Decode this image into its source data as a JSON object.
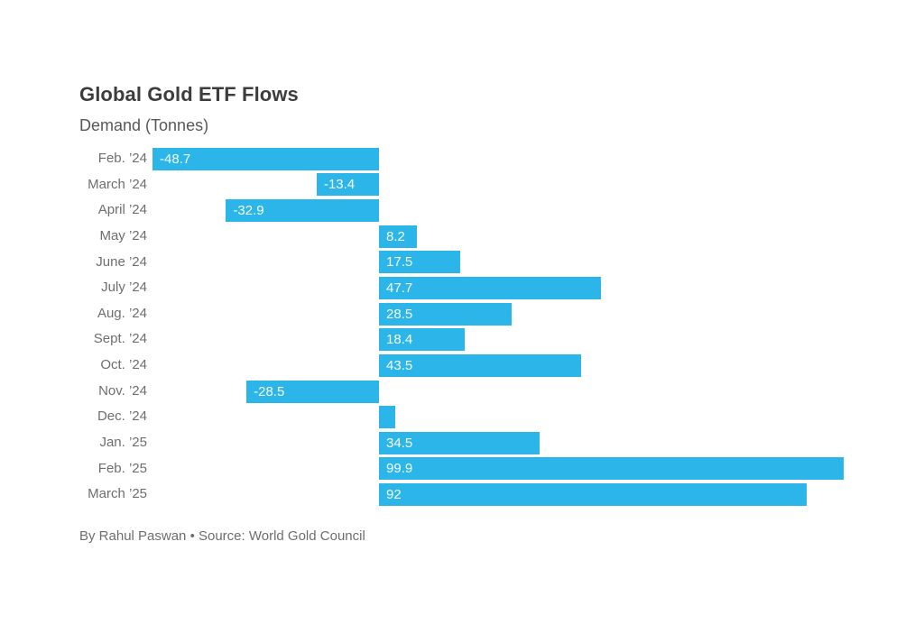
{
  "header": {
    "title": "Global Gold ETF Flows",
    "subtitle": "Demand (Tonnes)"
  },
  "footer": {
    "credit": "By Rahul Paswan • Source: World Gold Council"
  },
  "chart_data": {
    "type": "bar",
    "orientation": "horizontal",
    "title": "Global Gold ETF Flows",
    "subtitle": "Demand (Tonnes)",
    "unit": "Tonnes",
    "categories": [
      "Feb. ’24",
      "March ’24",
      "April ’24",
      "May ’24",
      "June ’24",
      "July ’24",
      "Aug. ’24",
      "Sept. ’24",
      "Oct. ’24",
      "Nov. ’24",
      "Dec. ’24",
      "Jan. ’25",
      "Feb. ’25",
      "March ’25"
    ],
    "values": [
      -48.7,
      -13.4,
      -32.9,
      8.2,
      17.5,
      47.7,
      28.5,
      18.4,
      43.5,
      -28.5,
      3.5,
      34.5,
      99.9,
      92
    ],
    "value_labels": [
      "-48.7",
      "-13.4",
      "-32.9",
      "8.2",
      "17.5",
      "47.7",
      "28.5",
      "18.4",
      "43.5",
      "-28.5",
      "",
      "34.5",
      "99.9",
      "92"
    ],
    "xlim": [
      -48.7,
      99.9
    ],
    "grid": false,
    "legend": "none",
    "bar_color": "#2CB5E9",
    "value_label_color": "#FFFFFF",
    "category_label_color": "#6E6E6E"
  }
}
